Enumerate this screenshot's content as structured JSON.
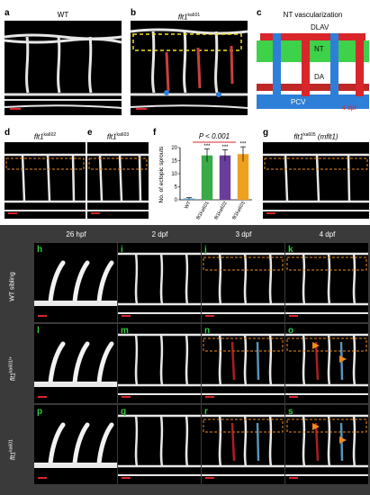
{
  "top_row": {
    "a": {
      "letter": "a",
      "title": "WT"
    },
    "b": {
      "letter": "b",
      "title_gene": "flt1",
      "title_allele": "ka601"
    },
    "c": {
      "letter": "c",
      "title": "NT vascularization",
      "labels": {
        "dlav": "DLAV",
        "nt": "NT",
        "da": "DA",
        "pcv": "PCV",
        "stage": "4 dpf"
      }
    }
  },
  "mid_row": {
    "d": {
      "letter": "d",
      "title_gene": "flt1",
      "title_allele": "ka602"
    },
    "e": {
      "letter": "e",
      "title_gene": "flt1",
      "title_allele": "ka603"
    },
    "f": {
      "letter": "f",
      "pvalue": "P < 0.001",
      "stars": "***"
    },
    "g": {
      "letter": "g",
      "title_gene": "flt1",
      "title_allele": "ka605",
      "title_extra": "(mflt1)"
    }
  },
  "chart_data": {
    "type": "bar",
    "ylabel": "No. of ectopic sprouts",
    "ylim": [
      0,
      20
    ],
    "yticks": [
      0,
      5,
      10,
      15,
      20
    ],
    "categories": [
      "WT",
      "flt1ka601",
      "flt1ka602",
      "flt1ka603"
    ],
    "values": [
      0.5,
      17,
      17,
      17.5
    ],
    "errors": [
      0.3,
      2.5,
      2.2,
      2.8
    ],
    "colors": [
      "#5aa0c8",
      "#3aaa48",
      "#6a3d9a",
      "#f0a020"
    ],
    "annotations": [
      "",
      "***",
      "***",
      "***"
    ],
    "pvalue": "P < 0.001"
  },
  "bottom": {
    "columns": [
      "26 hpf",
      "2 dpf",
      "3 dpf",
      "4 dpf"
    ],
    "rows": [
      {
        "label": "WT sibling",
        "letters": [
          "h",
          "i",
          "j",
          "k"
        ]
      },
      {
        "label_gene": "flt1",
        "label_allele": "ka601/+",
        "letters": [
          "l",
          "m",
          "n",
          "o"
        ]
      },
      {
        "label_gene": "flt1",
        "label_allele": "ka601",
        "letters": [
          "p",
          "q",
          "r",
          "s"
        ]
      }
    ]
  },
  "colors": {
    "scale": "#d8262b",
    "dashed": "#f08a1e",
    "dlav": "#d8262b",
    "da": "#c02828",
    "pcv": "#2e7fd8",
    "nt": "#3ed14a"
  }
}
